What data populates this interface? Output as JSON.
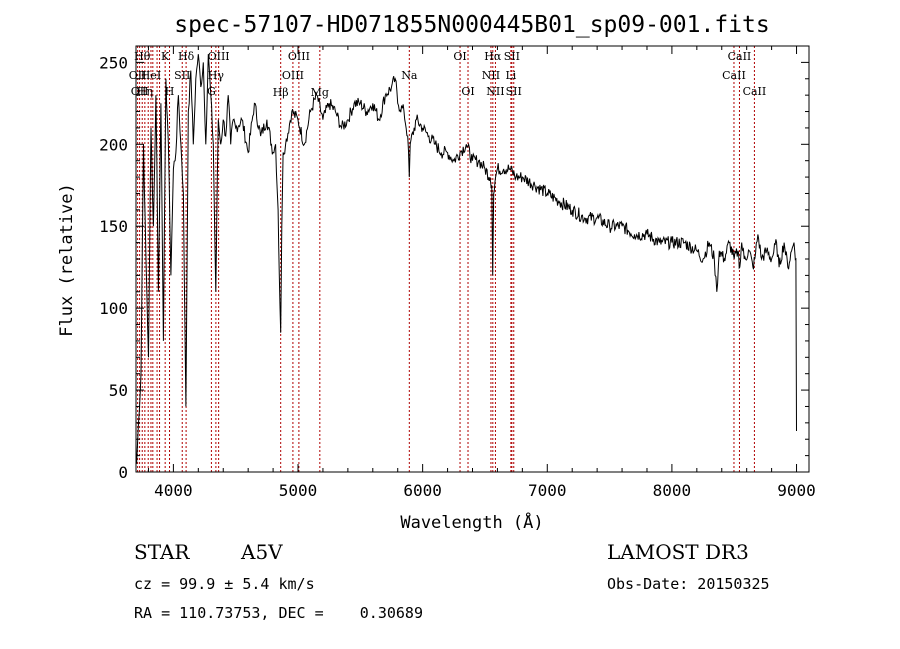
{
  "chart_data": {
    "type": "line",
    "title": "spec-57107-HD071855N000445B01_sp09-001.fits",
    "xlabel": "Wavelength (Å)",
    "ylabel": "Flux (relative)",
    "xlim": [
      3700,
      9100
    ],
    "ylim": [
      0,
      260
    ],
    "xticks": [
      4000,
      5000,
      6000,
      7000,
      8000,
      9000
    ],
    "yticks": [
      0,
      50,
      100,
      150,
      200,
      250
    ],
    "grid": false,
    "series": [
      {
        "name": "flux",
        "x": [
          3705,
          3720,
          3740,
          3760,
          3780,
          3800,
          3820,
          3840,
          3860,
          3880,
          3900,
          3920,
          3940,
          3960,
          3980,
          4000,
          4020,
          4040,
          4060,
          4080,
          4100,
          4120,
          4140,
          4160,
          4180,
          4200,
          4220,
          4240,
          4260,
          4280,
          4300,
          4320,
          4340,
          4360,
          4380,
          4400,
          4420,
          4440,
          4460,
          4480,
          4500,
          4550,
          4600,
          4650,
          4700,
          4750,
          4800,
          4820,
          4840,
          4850,
          4861,
          4870,
          4880,
          4900,
          4950,
          5000,
          5050,
          5100,
          5150,
          5200,
          5250,
          5300,
          5350,
          5400,
          5450,
          5500,
          5550,
          5600,
          5650,
          5700,
          5750,
          5780,
          5800,
          5850,
          5880,
          5893,
          5900,
          5950,
          6000,
          6050,
          6100,
          6150,
          6200,
          6250,
          6300,
          6350,
          6400,
          6450,
          6500,
          6540,
          6555,
          6562,
          6570,
          6585,
          6600,
          6650,
          6700,
          6750,
          6800,
          6900,
          7000,
          7100,
          7200,
          7300,
          7400,
          7500,
          7600,
          7700,
          7800,
          7900,
          8000,
          8100,
          8200,
          8250,
          8300,
          8340,
          8360,
          8380,
          8420,
          8460,
          8500,
          8530,
          8545,
          8560,
          8580,
          8620,
          8650,
          8665,
          8690,
          8720,
          8760,
          8800,
          8840,
          8860,
          8900,
          8930,
          8960,
          8980,
          8995,
          9000
        ],
        "values": [
          5,
          30,
          60,
          200,
          130,
          70,
          210,
          150,
          230,
          110,
          225,
          80,
          240,
          200,
          120,
          185,
          195,
          230,
          200,
          170,
          40,
          220,
          245,
          200,
          240,
          255,
          235,
          250,
          200,
          255,
          230,
          200,
          110,
          215,
          200,
          215,
          205,
          230,
          200,
          215,
          210,
          215,
          195,
          225,
          205,
          215,
          195,
          200,
          160,
          120,
          85,
          150,
          195,
          200,
          220,
          215,
          200,
          220,
          230,
          215,
          225,
          220,
          210,
          215,
          225,
          225,
          220,
          225,
          215,
          230,
          235,
          240,
          225,
          220,
          205,
          180,
          200,
          215,
          210,
          205,
          200,
          195,
          195,
          190,
          195,
          200,
          190,
          190,
          185,
          180,
          175,
          120,
          170,
          180,
          185,
          185,
          185,
          180,
          180,
          175,
          170,
          165,
          160,
          155,
          155,
          150,
          150,
          145,
          145,
          140,
          140,
          140,
          135,
          130,
          140,
          130,
          110,
          135,
          130,
          140,
          130,
          135,
          125,
          140,
          130,
          135,
          125,
          130,
          145,
          130,
          135,
          130,
          140,
          125,
          140,
          125,
          135,
          140,
          130,
          25
        ]
      }
    ],
    "lines": [
      {
        "wl": 3713,
        "label": "OII",
        "row": 2
      },
      {
        "wl": 3729,
        "label": "OII",
        "row": 3
      },
      {
        "wl": 3750,
        "label": "Hθ",
        "row": 1
      },
      {
        "wl": 3771,
        "label": "Hη",
        "row": 3
      },
      {
        "wl": 3798,
        "label": "",
        "row": 0
      },
      {
        "wl": 3820,
        "label": "HeI",
        "row": 2
      },
      {
        "wl": 3835,
        "label": "",
        "row": 0
      },
      {
        "wl": 3869,
        "label": "",
        "row": 0
      },
      {
        "wl": 3889,
        "label": "",
        "row": 0
      },
      {
        "wl": 3934,
        "label": "K",
        "row": 1
      },
      {
        "wl": 3969,
        "label": "H",
        "row": 3
      },
      {
        "wl": 4071,
        "label": "SII",
        "row": 2
      },
      {
        "wl": 4102,
        "label": "Hδ",
        "row": 1
      },
      {
        "wl": 4305,
        "label": "G",
        "row": 3
      },
      {
        "wl": 4341,
        "label": "Hγ",
        "row": 2
      },
      {
        "wl": 4363,
        "label": "OIII",
        "row": 1
      },
      {
        "wl": 4861,
        "label": "Hβ",
        "row": 4
      },
      {
        "wl": 4959,
        "label": "OIII",
        "row": 2
      },
      {
        "wl": 5007,
        "label": "OIII",
        "row": 1
      },
      {
        "wl": 5175,
        "label": "Mg",
        "row": 4
      },
      {
        "wl": 5893,
        "label": "Na",
        "row": 2
      },
      {
        "wl": 6300,
        "label": "OI",
        "row": 1
      },
      {
        "wl": 6364,
        "label": "OI",
        "row": 3
      },
      {
        "wl": 6548,
        "label": "NII",
        "row": 2
      },
      {
        "wl": 6563,
        "label": "Hα",
        "row": 1
      },
      {
        "wl": 6584,
        "label": "NII",
        "row": 3
      },
      {
        "wl": 6708,
        "label": "Li",
        "row": 2
      },
      {
        "wl": 6716,
        "label": "SII",
        "row": 1
      },
      {
        "wl": 6731,
        "label": "SII",
        "row": 3
      },
      {
        "wl": 8498,
        "label": "CaII",
        "row": 2
      },
      {
        "wl": 8542,
        "label": "CaII",
        "row": 1
      },
      {
        "wl": 8662,
        "label": "CaII",
        "row": 3
      }
    ]
  },
  "info": {
    "object_type": "STAR",
    "subclass": "A5V",
    "survey": "LAMOST DR3",
    "redshift": "cz = 99.9 ± 5.4 km/s",
    "obs_date": "Obs-Date: 20150325",
    "coords": "RA = 110.73753, DEC =    0.30689"
  }
}
